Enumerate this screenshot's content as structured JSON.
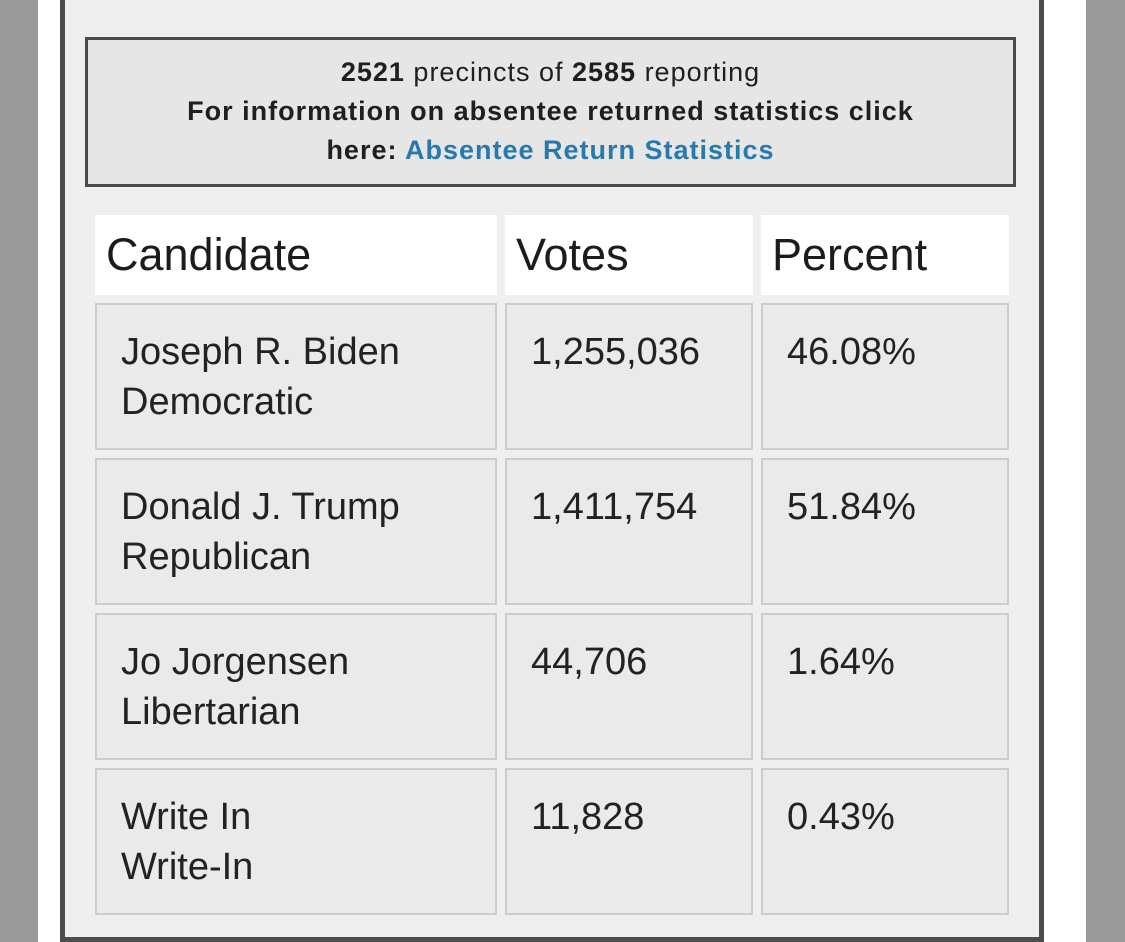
{
  "notice": {
    "reporting_count": "2521",
    "mid_text": " precincts of ",
    "total_count": "2585",
    "suffix_text": " reporting",
    "info_line": "For information on absentee returned statistics click",
    "here_prefix": "here: ",
    "link_label": "Absentee Return Statistics"
  },
  "colors": {
    "link_blue": "#2779ae",
    "frame_border": "#4d4d4d",
    "notice_border": "#4a4a4a",
    "cell_border": "#cccccc"
  },
  "table": {
    "headers": [
      "Candidate",
      "Votes",
      "Percent"
    ],
    "rows": [
      {
        "candidate": "Joseph R. Biden",
        "party": "Democratic",
        "votes": "1,255,036",
        "percent": "46.08%"
      },
      {
        "candidate": "Donald J. Trump",
        "party": "Republican",
        "votes": "1,411,754",
        "percent": "51.84%"
      },
      {
        "candidate": "Jo Jorgensen",
        "party": "Libertarian",
        "votes": "44,706",
        "percent": "1.64%"
      },
      {
        "candidate": "Write In",
        "party": "Write-In",
        "votes": "11,828",
        "percent": "0.43%"
      }
    ]
  }
}
